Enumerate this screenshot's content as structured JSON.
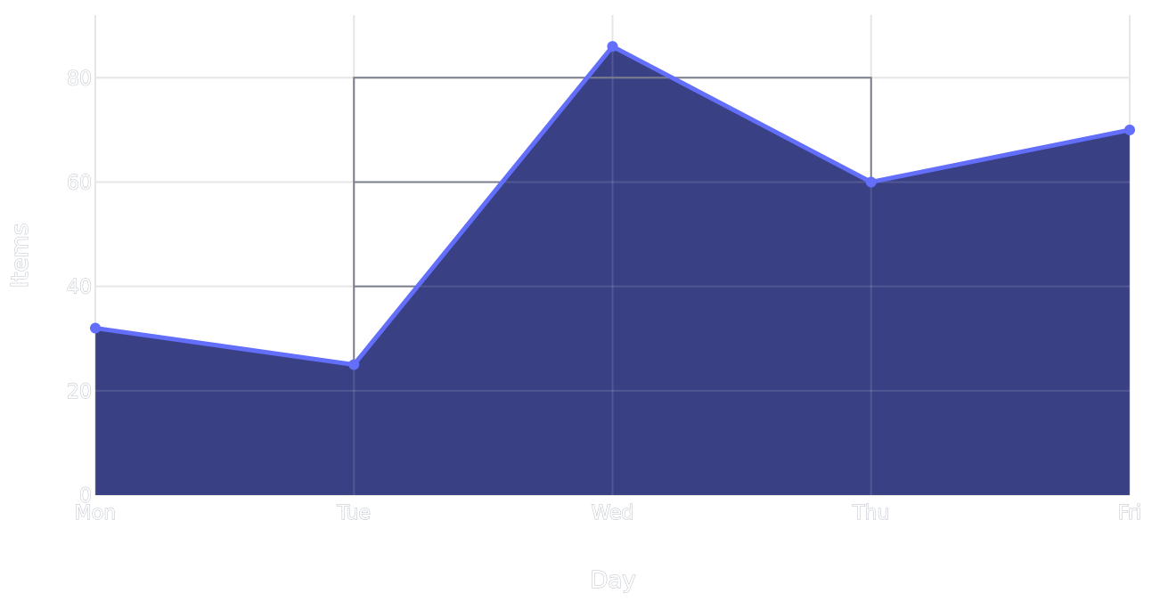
{
  "chart_data": {
    "type": "area",
    "categories": [
      "Mon",
      "Tue",
      "Wed",
      "Thu",
      "Fri"
    ],
    "values": [
      32,
      25,
      86,
      60,
      70
    ],
    "xlabel": "Day",
    "ylabel": "Items",
    "ylim": [
      0,
      92
    ],
    "yticks": [
      0,
      20,
      40,
      60,
      80
    ],
    "grid": true,
    "colors": {
      "fill": "#3a4084",
      "line": "#636efa",
      "grid": "#e3e3e3",
      "annotation_box": "#7a7d8c"
    },
    "annotation_steps": {
      "top": 80,
      "levels": [
        60,
        40
      ],
      "x_start": "Tue",
      "x_end": "Thu"
    }
  }
}
